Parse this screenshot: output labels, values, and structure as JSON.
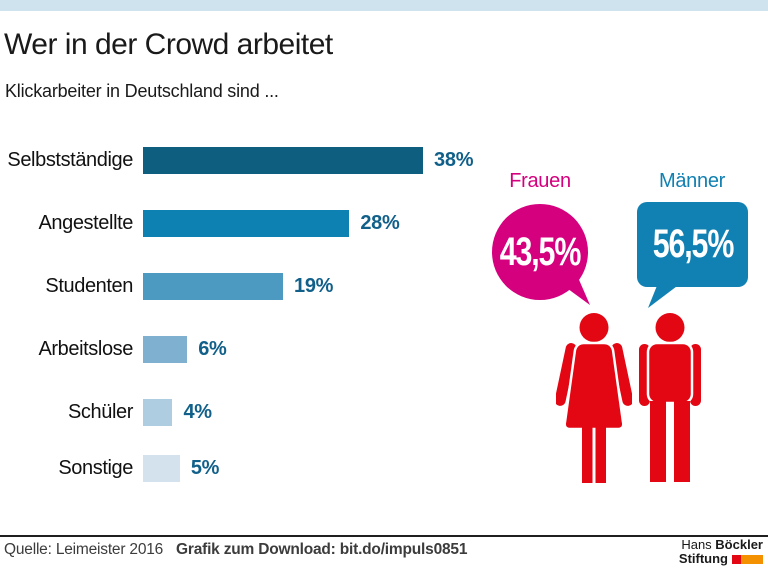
{
  "header": {
    "title": "Wer in der Crowd arbeitet",
    "subtitle": "Klickarbeiter in Deutschland sind ..."
  },
  "chart_data": {
    "type": "bar",
    "orientation": "horizontal",
    "title": "Wer in der Crowd arbeitet",
    "subtitle": "Klickarbeiter in Deutschland sind ...",
    "categories": [
      "Selbstständige",
      "Angestellte",
      "Studenten",
      "Arbeitslose",
      "Schüler",
      "Sonstige"
    ],
    "values": [
      38,
      28,
      19,
      6,
      4,
      5
    ],
    "value_labels": [
      "38%",
      "28%",
      "19%",
      "6%",
      "4%",
      "5%"
    ],
    "unit": "%",
    "xlim": [
      0,
      40
    ],
    "grid": false,
    "bar_colors": [
      "#0e5e80",
      "#0e81b3",
      "#4c9ac2",
      "#7fb0d0",
      "#aecde0",
      "#d3e2ec"
    ],
    "value_label_color": "#11608a"
  },
  "gender": {
    "female": {
      "label": "Frauen",
      "value": "43,5%",
      "color": "#d4007e"
    },
    "male": {
      "label": "Männer",
      "value": "56,5%",
      "color": "#1180b2"
    },
    "figure_color": "#e30613"
  },
  "footer": {
    "source": "Quelle: Leimeister 2016",
    "download": "Grafik zum Download: bit.do/impuls0851",
    "logo": {
      "line1_regular": "Hans ",
      "line1_bold": "Böckler",
      "line2_bold": "Stiftung",
      "block_colors": [
        "#e30613",
        "#f39100"
      ]
    }
  },
  "colors": {
    "top_strip": "#cfe3ee"
  }
}
